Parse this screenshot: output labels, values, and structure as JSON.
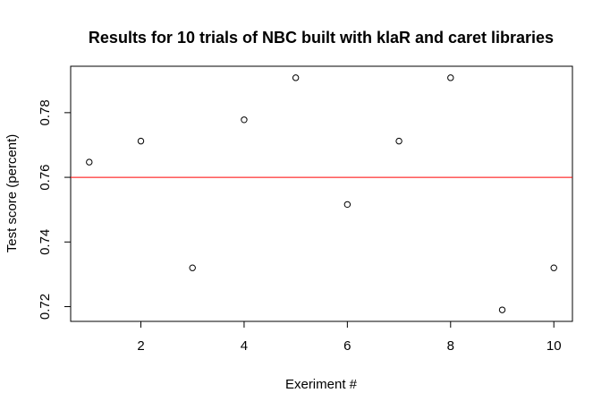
{
  "chart_data": {
    "type": "scatter",
    "title": "Results for 10 trials of NBC built with klaR and caret libraries",
    "xlabel": "Exeriment #",
    "ylabel": "Test score (percent)",
    "x": [
      1,
      2,
      3,
      4,
      5,
      6,
      7,
      8,
      9,
      10
    ],
    "y": [
      0.7647,
      0.7712,
      0.732,
      0.7778,
      0.7908,
      0.7516,
      0.7712,
      0.7908,
      0.719,
      0.732
    ],
    "xlim": [
      0.64,
      10.36
    ],
    "ylim": [
      0.71544,
      0.79436
    ],
    "x_ticks": [
      2,
      4,
      6,
      8,
      10
    ],
    "y_ticks": [
      0.72,
      0.74,
      0.76,
      0.78
    ],
    "x_tick_labels": [
      "2",
      "4",
      "6",
      "8",
      "10"
    ],
    "y_tick_labels": [
      "0.72",
      "0.74",
      "0.76",
      "0.78"
    ],
    "reference_line": {
      "y": 0.76,
      "color": "#ff0000"
    },
    "marker": "open-circle",
    "grid": false,
    "box": true
  }
}
